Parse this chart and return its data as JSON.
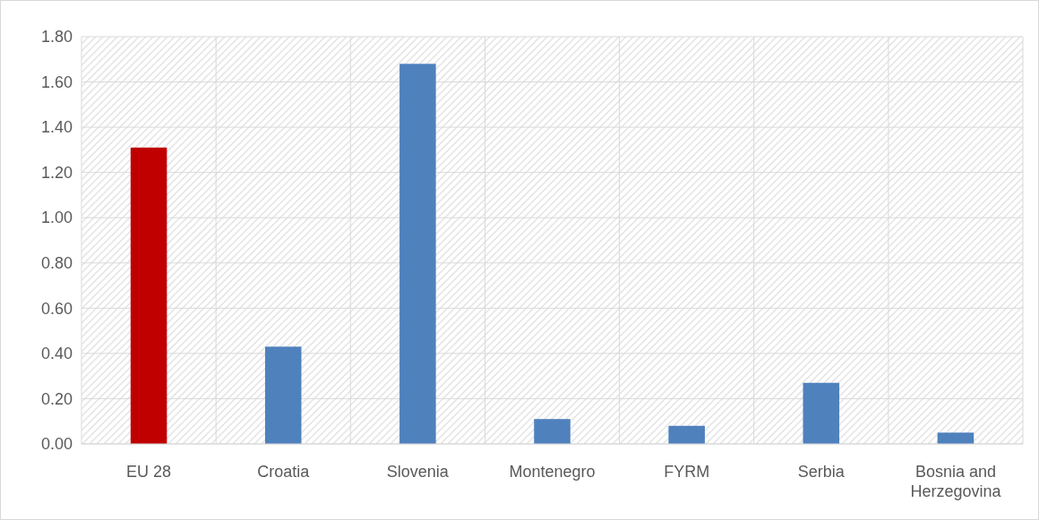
{
  "chart_data": {
    "type": "bar",
    "categories": [
      "EU 28",
      "Croatia",
      "Slovenia",
      "Montenegro",
      "FYRM",
      "Serbia",
      "Bosnia and Herzegovina"
    ],
    "values": [
      1.31,
      0.43,
      1.68,
      0.11,
      0.08,
      0.27,
      0.05
    ],
    "colors": [
      "#c00000",
      "#4f81bd",
      "#4f81bd",
      "#4f81bd",
      "#4f81bd",
      "#4f81bd",
      "#4f81bd"
    ],
    "ylim": [
      0,
      1.8
    ],
    "yticks": [
      {
        "value": 0,
        "label": "0.00"
      },
      {
        "value": 0.2,
        "label": "0.20"
      },
      {
        "value": 0.4,
        "label": "0.40"
      },
      {
        "value": 0.6,
        "label": "0.60"
      },
      {
        "value": 0.8,
        "label": "0.80"
      },
      {
        "value": 1,
        "label": "1.00"
      },
      {
        "value": 1.2,
        "label": "1.20"
      },
      {
        "value": 1.4,
        "label": "1.40"
      },
      {
        "value": 1.6,
        "label": "1.60"
      },
      {
        "value": 1.8,
        "label": "1.80"
      }
    ],
    "grid": true
  }
}
